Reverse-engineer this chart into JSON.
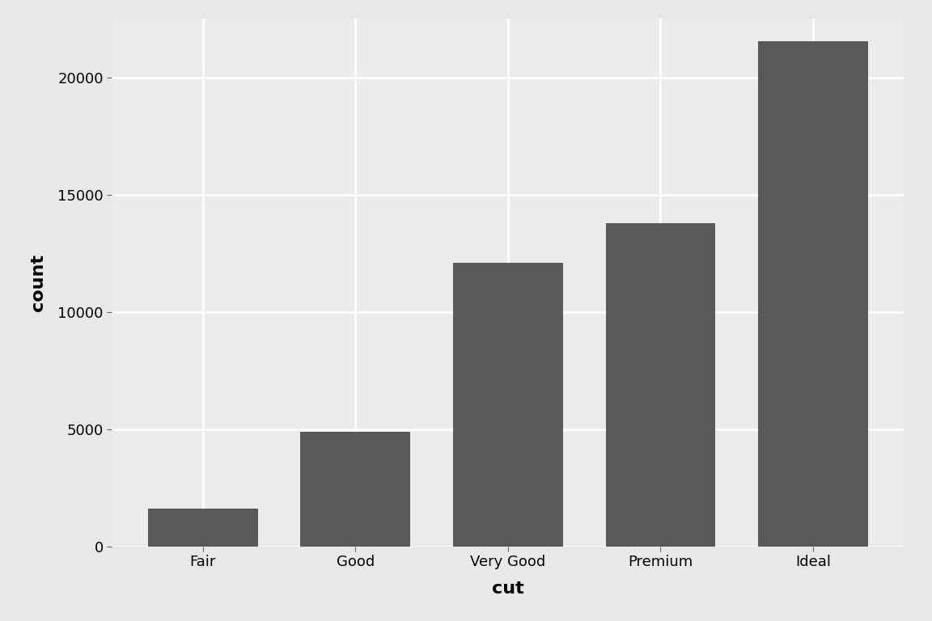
{
  "categories": [
    "Fair",
    "Good",
    "Very Good",
    "Premium",
    "Ideal"
  ],
  "values": [
    1610,
    4906,
    12082,
    13791,
    21551
  ],
  "bar_color": "#595959",
  "outer_background": "#e8e8e8",
  "panel_background": "#ebebeb",
  "xlabel": "cut",
  "ylabel": "count",
  "ylim": [
    0,
    22500
  ],
  "yticks": [
    0,
    5000,
    10000,
    15000,
    20000
  ],
  "xlabel_fontsize": 16,
  "ylabel_fontsize": 16,
  "tick_fontsize": 13,
  "grid_color": "#ffffff",
  "grid_linewidth": 1.8,
  "bar_width": 0.72
}
